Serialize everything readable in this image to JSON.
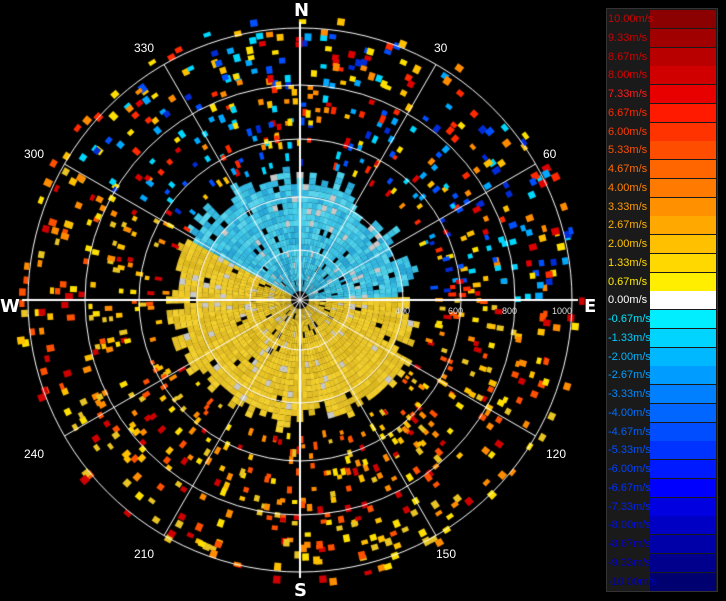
{
  "cardinals": {
    "n": "N",
    "e": "E",
    "s": "S",
    "w": "W"
  },
  "bearings": [
    "30",
    "60",
    "120",
    "150",
    "210",
    "240",
    "300",
    "330"
  ],
  "range_labels": [
    "400",
    "600",
    "800",
    "1000"
  ],
  "legend": {
    "items": [
      {
        "label": "10.00m/s",
        "color": "#8b0000",
        "text": "#cc0000"
      },
      {
        "label": "9.33m/s",
        "color": "#a00000",
        "text": "#cc0000"
      },
      {
        "label": "8.67m/s",
        "color": "#b80000",
        "text": "#d00000"
      },
      {
        "label": "8.00m/s",
        "color": "#d00000",
        "text": "#e00000"
      },
      {
        "label": "7.33m/s",
        "color": "#e80000",
        "text": "#ff1a1a"
      },
      {
        "label": "6.67m/s",
        "color": "#ff1a00",
        "text": "#ff2a00"
      },
      {
        "label": "6.00m/s",
        "color": "#ff3300",
        "text": "#ff3c00"
      },
      {
        "label": "5.33m/s",
        "color": "#ff4d00",
        "text": "#ff5000"
      },
      {
        "label": "4.67m/s",
        "color": "#ff6600",
        "text": "#ff6a00"
      },
      {
        "label": "4.00m/s",
        "color": "#ff7a00",
        "text": "#ff8000"
      },
      {
        "label": "3.33m/s",
        "color": "#ff9000",
        "text": "#ff9a00"
      },
      {
        "label": "2.67m/s",
        "color": "#ffa800",
        "text": "#ffb000"
      },
      {
        "label": "2.00m/s",
        "color": "#ffc000",
        "text": "#ffc400"
      },
      {
        "label": "1.33m/s",
        "color": "#ffd800",
        "text": "#ffd800"
      },
      {
        "label": "0.67m/s",
        "color": "#ffee00",
        "text": "#ffee00"
      },
      {
        "label": "0.00m/s",
        "color": "#ffffff",
        "text": "#ffffff"
      },
      {
        "label": "-0.67m/s",
        "color": "#00eeff",
        "text": "#00e6ff"
      },
      {
        "label": "-1.33m/s",
        "color": "#00d4ff",
        "text": "#00ccff"
      },
      {
        "label": "-2.00m/s",
        "color": "#00b8ff",
        "text": "#00b4ff"
      },
      {
        "label": "-2.67m/s",
        "color": "#009cff",
        "text": "#00a0ff"
      },
      {
        "label": "-3.33m/s",
        "color": "#0080ff",
        "text": "#0088ff"
      },
      {
        "label": "-4.00m/s",
        "color": "#0066ff",
        "text": "#0070ff"
      },
      {
        "label": "-4.67m/s",
        "color": "#004dff",
        "text": "#0060ff"
      },
      {
        "label": "-5.33m/s",
        "color": "#0033ff",
        "text": "#0050ff"
      },
      {
        "label": "-6.00m/s",
        "color": "#001aff",
        "text": "#0040ff"
      },
      {
        "label": "-6.67m/s",
        "color": "#0000ff",
        "text": "#0030ff"
      },
      {
        "label": "-7.33m/s",
        "color": "#0000e0",
        "text": "#0020f0"
      },
      {
        "label": "-8.00m/s",
        "color": "#0000c4",
        "text": "#0010e0"
      },
      {
        "label": "-8.67m/s",
        "color": "#0000a8",
        "text": "#0000d0"
      },
      {
        "label": "-9.33m/s",
        "color": "#00008c",
        "text": "#0000c0"
      },
      {
        "label": "-10.00m/s",
        "color": "#000070",
        "text": "#0000b0"
      }
    ]
  }
}
